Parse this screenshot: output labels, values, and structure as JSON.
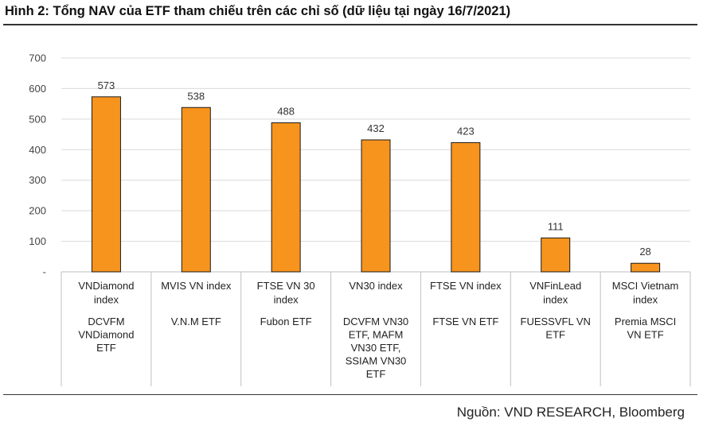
{
  "title": "Hình 2: Tổng NAV của ETF tham chiếu trên các chỉ số (dữ liệu tại ngày 16/7/2021)",
  "source": "Nguồn: VND RESEARCH, Bloomberg",
  "colors": {
    "bar": "#F7941D",
    "bar_edge": "#1a1a1a",
    "grid": "#d9d9d9"
  },
  "chart_data": {
    "type": "bar",
    "categories": [
      {
        "index": [
          "VNDiamond",
          "index"
        ],
        "etf": [
          "DCVFM",
          "VNDiamond",
          "ETF"
        ]
      },
      {
        "index": [
          "MVIS VN index"
        ],
        "etf": [
          "V.N.M ETF"
        ]
      },
      {
        "index": [
          "FTSE VN 30",
          "index"
        ],
        "etf": [
          "Fubon ETF"
        ]
      },
      {
        "index": [
          "VN30 index"
        ],
        "etf": [
          "DCVFM VN30",
          "ETF, MAFM",
          "VN30 ETF,",
          "SSIAM VN30",
          "ETF"
        ]
      },
      {
        "index": [
          "FTSE VN index"
        ],
        "etf": [
          "FTSE VN ETF"
        ]
      },
      {
        "index": [
          "VNFinLead",
          "index"
        ],
        "etf": [
          "FUESSVFL VN",
          "ETF"
        ]
      },
      {
        "index": [
          "MSCI Vietnam",
          "index"
        ],
        "etf": [
          "Premia MSCI",
          "VN ETF"
        ]
      }
    ],
    "values": [
      573,
      538,
      488,
      432,
      423,
      111,
      28
    ],
    "yticks": [
      "-",
      "100",
      "200",
      "300",
      "400",
      "500",
      "600",
      "700"
    ],
    "ylim": [
      0,
      700
    ],
    "grid": true
  }
}
